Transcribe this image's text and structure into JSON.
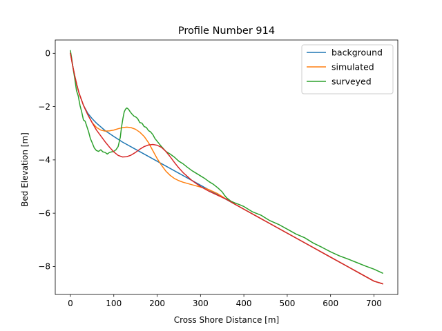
{
  "chart_data": {
    "type": "line",
    "title": "Profile Number 914",
    "xlabel": "Cross Shore Distance [m]",
    "ylabel": "Bed Elevation [m]",
    "xlim": [
      -35,
      755
    ],
    "ylim": [
      -9.05,
      0.5
    ],
    "xticks": [
      0,
      100,
      200,
      300,
      400,
      500,
      600,
      700
    ],
    "yticks": [
      0,
      -2,
      -4,
      -6,
      -8
    ],
    "ytick_labels": [
      "0",
      "−2",
      "−4",
      "−6",
      "−8"
    ],
    "grid": false,
    "legend_position": "top-right",
    "series": [
      {
        "name": "background",
        "color": "#1f77b4",
        "in_legend": true,
        "x": [
          0,
          5,
          10,
          15,
          20,
          30,
          40,
          50,
          60,
          80,
          100,
          120,
          150,
          200,
          250,
          300,
          350,
          400,
          450,
          500,
          550,
          600,
          650,
          700,
          720
        ],
        "y": [
          0,
          -0.45,
          -0.85,
          -1.2,
          -1.5,
          -1.95,
          -2.25,
          -2.45,
          -2.62,
          -2.9,
          -3.12,
          -3.33,
          -3.6,
          -4.05,
          -4.5,
          -4.95,
          -5.4,
          -5.85,
          -6.3,
          -6.75,
          -7.2,
          -7.65,
          -8.1,
          -8.55,
          -8.65
        ]
      },
      {
        "name": "simulated",
        "color": "#ff7f0e",
        "in_legend": true,
        "x": [
          0,
          5,
          10,
          15,
          20,
          30,
          40,
          50,
          60,
          70,
          80,
          90,
          100,
          110,
          120,
          130,
          140,
          150,
          160,
          170,
          180,
          190,
          200,
          210,
          220,
          230,
          240,
          250,
          260,
          280,
          300,
          320,
          340,
          360,
          380,
          400,
          450,
          500,
          550,
          600,
          650,
          700,
          720
        ],
        "y": [
          0,
          -0.45,
          -0.85,
          -1.2,
          -1.5,
          -1.95,
          -2.3,
          -2.6,
          -2.78,
          -2.88,
          -2.92,
          -2.91,
          -2.88,
          -2.83,
          -2.79,
          -2.77,
          -2.79,
          -2.85,
          -2.96,
          -3.12,
          -3.35,
          -3.65,
          -3.95,
          -4.2,
          -4.42,
          -4.58,
          -4.7,
          -4.78,
          -4.84,
          -4.93,
          -5.02,
          -5.12,
          -5.27,
          -5.48,
          -5.67,
          -5.85,
          -6.3,
          -6.75,
          -7.2,
          -7.65,
          -8.1,
          -8.55,
          -8.65
        ]
      },
      {
        "name": "surveyed",
        "color": "#2ca02c",
        "in_legend": true,
        "x": [
          0,
          3,
          6,
          10,
          14,
          18,
          22,
          26,
          30,
          34,
          38,
          42,
          46,
          50,
          55,
          60,
          65,
          70,
          75,
          80,
          85,
          90,
          95,
          100,
          105,
          110,
          115,
          118,
          121,
          124,
          127,
          130,
          134,
          138,
          142,
          146,
          150,
          155,
          160,
          165,
          170,
          175,
          180,
          185,
          190,
          195,
          200,
          210,
          220,
          230,
          240,
          250,
          260,
          270,
          280,
          290,
          300,
          310,
          320,
          330,
          340,
          350,
          355,
          360,
          370,
          380,
          390,
          400,
          420,
          440,
          460,
          480,
          500,
          520,
          540,
          560,
          580,
          600,
          620,
          640,
          660,
          680,
          700,
          720
        ],
        "y": [
          0.1,
          -0.2,
          -0.55,
          -0.95,
          -1.4,
          -1.6,
          -1.95,
          -2.2,
          -2.5,
          -2.55,
          -2.75,
          -2.95,
          -3.2,
          -3.35,
          -3.55,
          -3.65,
          -3.68,
          -3.62,
          -3.7,
          -3.72,
          -3.78,
          -3.72,
          -3.7,
          -3.68,
          -3.62,
          -3.5,
          -3.15,
          -2.75,
          -2.45,
          -2.2,
          -2.1,
          -2.05,
          -2.1,
          -2.2,
          -2.28,
          -2.35,
          -2.38,
          -2.45,
          -2.6,
          -2.62,
          -2.75,
          -2.78,
          -2.9,
          -2.95,
          -3.05,
          -3.2,
          -3.3,
          -3.5,
          -3.68,
          -3.78,
          -3.9,
          -4.05,
          -4.15,
          -4.28,
          -4.4,
          -4.5,
          -4.6,
          -4.7,
          -4.82,
          -4.92,
          -5.05,
          -5.2,
          -5.32,
          -5.42,
          -5.55,
          -5.62,
          -5.68,
          -5.75,
          -5.95,
          -6.08,
          -6.28,
          -6.42,
          -6.6,
          -6.78,
          -6.92,
          -7.12,
          -7.28,
          -7.45,
          -7.6,
          -7.72,
          -7.85,
          -7.98,
          -8.1,
          -8.25
        ]
      },
      {
        "name": "",
        "color": "#d62728",
        "in_legend": false,
        "x": [
          0,
          5,
          10,
          15,
          20,
          30,
          40,
          50,
          60,
          70,
          80,
          90,
          100,
          110,
          120,
          130,
          140,
          150,
          160,
          170,
          180,
          190,
          200,
          210,
          220,
          230,
          240,
          250,
          260,
          280,
          300,
          320,
          340,
          360,
          380,
          400,
          450,
          500,
          550,
          600,
          650,
          700,
          720
        ],
        "y": [
          0,
          -0.45,
          -0.85,
          -1.2,
          -1.5,
          -1.95,
          -2.3,
          -2.6,
          -2.88,
          -3.1,
          -3.32,
          -3.52,
          -3.7,
          -3.83,
          -3.89,
          -3.88,
          -3.82,
          -3.72,
          -3.6,
          -3.5,
          -3.44,
          -3.42,
          -3.45,
          -3.53,
          -3.68,
          -3.88,
          -4.1,
          -4.3,
          -4.48,
          -4.77,
          -5.0,
          -5.18,
          -5.33,
          -5.48,
          -5.67,
          -5.85,
          -6.3,
          -6.75,
          -7.2,
          -7.65,
          -8.1,
          -8.55,
          -8.65
        ]
      }
    ]
  }
}
